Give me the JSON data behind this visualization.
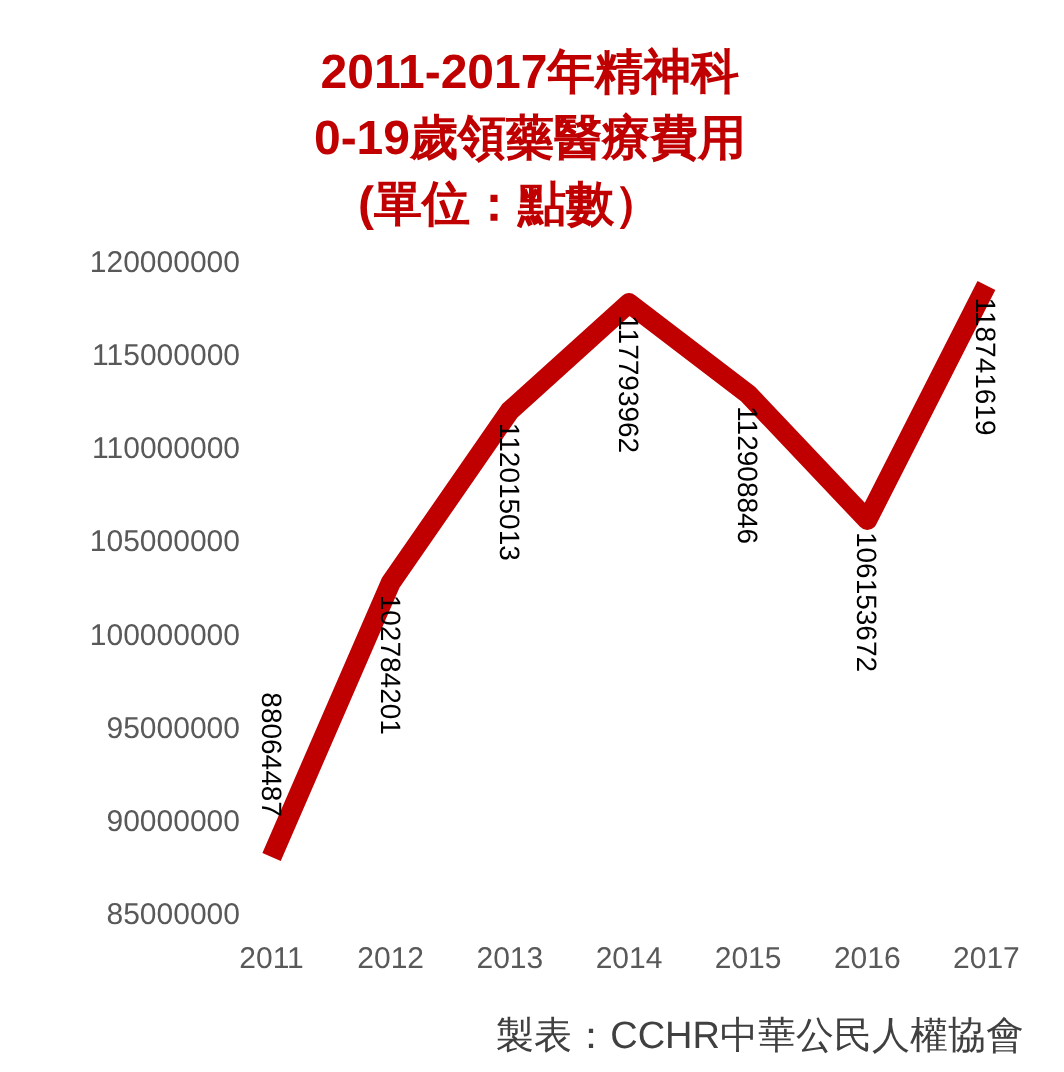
{
  "chart_data": {
    "type": "line",
    "title": "2011-2017年精神科\n0-19歲領藥醫療費用\n(單位：點數）",
    "categories": [
      "2011",
      "2012",
      "2013",
      "2014",
      "2015",
      "2016",
      "2017"
    ],
    "series": [
      {
        "color": "#c00000",
        "values": [
          88064487,
          102784201,
          112015013,
          117793962,
          112908846,
          106153672,
          118741619
        ]
      }
    ],
    "ylim": [
      85000000,
      120000000
    ],
    "yticks": [
      85000000,
      90000000,
      95000000,
      100000000,
      105000000,
      110000000,
      115000000,
      120000000
    ],
    "data_labels": true,
    "grid": false,
    "marker": "none",
    "line_style": "solid",
    "annotations": [
      "製表：CCHR中華公民人權協會"
    ]
  }
}
